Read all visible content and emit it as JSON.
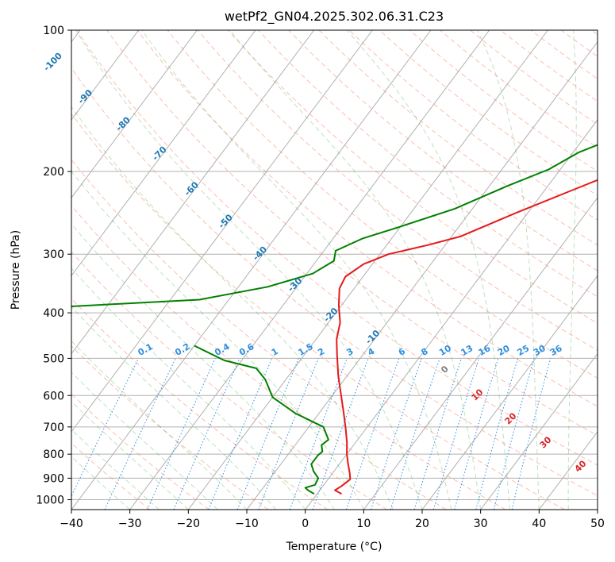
{
  "chart_data": {
    "type": "line",
    "title": "wetPf2_GN04.2025.302.06.31.C23",
    "xlabel": "Temperature (°C)",
    "ylabel": "Pressure (hPa)",
    "xlim": [
      -40,
      50
    ],
    "ylim": [
      1050,
      100
    ],
    "x_ticks": [
      -40,
      -30,
      -20,
      -10,
      0,
      10,
      20,
      30,
      40,
      50
    ],
    "y_ticks": [
      100,
      200,
      300,
      400,
      500,
      600,
      700,
      800,
      900,
      1000
    ],
    "series": [
      {
        "name": "Temperature",
        "color": "#e41a1c",
        "points": [
          [
            4.2,
            972
          ],
          [
            2.6,
            955
          ],
          [
            3.2,
            935
          ],
          [
            3.8,
            905
          ],
          [
            3.0,
            880
          ],
          [
            1.5,
            840
          ],
          [
            0.0,
            800
          ],
          [
            -1.5,
            755
          ],
          [
            -3.5,
            705
          ],
          [
            -6.0,
            650
          ],
          [
            -8.5,
            600
          ],
          [
            -11.5,
            545
          ],
          [
            -14.5,
            490
          ],
          [
            -16.5,
            455
          ],
          [
            -18.0,
            420
          ],
          [
            -20.5,
            385
          ],
          [
            -22.5,
            355
          ],
          [
            -23.0,
            335
          ],
          [
            -21.5,
            315
          ],
          [
            -18.5,
            300
          ],
          [
            -13.0,
            287
          ],
          [
            -8.5,
            275
          ],
          [
            -2.0,
            245
          ],
          [
            4.5,
            220
          ],
          [
            15.0,
            185
          ],
          [
            24.0,
            158
          ],
          [
            32.0,
            140
          ],
          [
            44.0,
            118
          ],
          [
            55.0,
            100
          ]
        ]
      },
      {
        "name": "Dewpoint",
        "color": "#008000",
        "points": [
          [
            -0.5,
            972
          ],
          [
            -2.0,
            955
          ],
          [
            -2.8,
            943
          ],
          [
            -1.5,
            930
          ],
          [
            -1.8,
            900
          ],
          [
            -3.5,
            870
          ],
          [
            -4.8,
            840
          ],
          [
            -4.8,
            805
          ],
          [
            -4.5,
            790
          ],
          [
            -5.5,
            765
          ],
          [
            -5.0,
            745
          ],
          [
            -7.5,
            700
          ],
          [
            -14.0,
            655
          ],
          [
            -20.0,
            605
          ],
          [
            -23.5,
            555
          ],
          [
            -26.5,
            525
          ],
          [
            -33.0,
            505
          ],
          [
            -40.0,
            470
          ]
        ]
      },
      {
        "name": "Dewpoint (upper)",
        "color": "#008000",
        "points": [
          [
            -70.0,
            390
          ],
          [
            -45.0,
            375
          ],
          [
            -35.0,
            352
          ],
          [
            -29.0,
            330
          ],
          [
            -27.0,
            310
          ],
          [
            -28.0,
            295
          ],
          [
            -25.0,
            278
          ],
          [
            -20.0,
            262
          ],
          [
            -13.0,
            240
          ],
          [
            -7.0,
            215
          ],
          [
            -2.0,
            198
          ],
          [
            1.0,
            182
          ],
          [
            4.5,
            172
          ],
          [
            8.0,
            162
          ],
          [
            9.0,
            150
          ],
          [
            11.5,
            138
          ],
          [
            15.0,
            130
          ],
          [
            20.0,
            123
          ],
          [
            28.0,
            112
          ],
          [
            36.0,
            100
          ]
        ]
      }
    ],
    "mixing_ratio_labels": [
      "0.1",
      "0.2",
      "0.4",
      "0.6",
      "1",
      "1.5",
      "2",
      "3",
      "4",
      "6",
      "8",
      "10",
      "13",
      "16",
      "20",
      "25",
      "30",
      "36"
    ],
    "isotherm_labels": [
      "-100",
      "-90",
      "-80",
      "-70",
      "-60",
      "-50",
      "-40",
      "-30",
      "-20",
      "-10",
      "0",
      "10",
      "20",
      "30",
      "40"
    ]
  }
}
